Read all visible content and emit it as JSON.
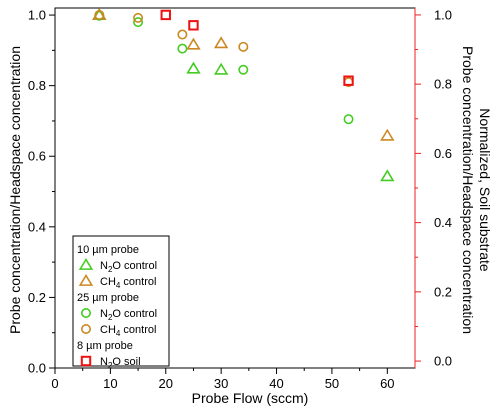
{
  "chart_data": {
    "type": "scatter",
    "title": "",
    "xlabel": "Probe Flow (sccm)",
    "ylabel_left": "Probe concentration/Headspace concentration",
    "ylabel_right_line1": "Probe concentration/Headspace concentration",
    "ylabel_right_line2": "Normalized,  Soil substrate",
    "xlim": [
      0,
      65
    ],
    "ylim_left": [
      0,
      1.02
    ],
    "ylim_right": [
      -0.02,
      1.02
    ],
    "x_ticks": [
      0,
      10,
      20,
      30,
      40,
      50,
      60
    ],
    "y_ticks_left": [
      0.0,
      0.2,
      0.4,
      0.6,
      0.8,
      1.0
    ],
    "y_ticks_right": [
      0.0,
      0.2,
      0.4,
      0.6,
      0.8,
      1.0
    ],
    "grid": false,
    "legend_position": "bottom-left",
    "legend": [
      {
        "type": "header",
        "text": "10 µm probe"
      },
      {
        "type": "entry",
        "series": 0,
        "text_main": "N",
        "text_sub": "2",
        "text_rest": "O control"
      },
      {
        "type": "entry",
        "series": 1,
        "text_main": "CH",
        "text_sub": "4",
        "text_rest": " control"
      },
      {
        "type": "header",
        "text": "25 µm probe"
      },
      {
        "type": "entry",
        "series": 2,
        "text_main": "N",
        "text_sub": "2",
        "text_rest": "O control"
      },
      {
        "type": "entry",
        "series": 3,
        "text_main": "CH",
        "text_sub": "4",
        "text_rest": " control"
      },
      {
        "type": "header",
        "text": "8 µm probe"
      },
      {
        "type": "entry",
        "series": 4,
        "text_main": "N",
        "text_sub": "2",
        "text_rest": "O soil"
      }
    ],
    "series": [
      {
        "marker": "triangle",
        "color": "#44cc22",
        "axis": "left",
        "points": [
          [
            8,
            1.0
          ],
          [
            25,
            0.848
          ],
          [
            30,
            0.845
          ],
          [
            60,
            0.543
          ]
        ]
      },
      {
        "marker": "triangle",
        "color": "#cc8822",
        "axis": "left",
        "points": [
          [
            8,
            1.0
          ],
          [
            25,
            0.916
          ],
          [
            30,
            0.92
          ],
          [
            60,
            0.658
          ]
        ]
      },
      {
        "marker": "circle",
        "color": "#44cc22",
        "axis": "left",
        "points": [
          [
            8,
            0.998
          ],
          [
            15,
            0.98
          ],
          [
            23,
            0.905
          ],
          [
            34,
            0.845
          ],
          [
            53,
            0.705
          ]
        ]
      },
      {
        "marker": "circle",
        "color": "#cc8822",
        "axis": "left",
        "points": [
          [
            8,
            1.0
          ],
          [
            15,
            0.992
          ],
          [
            23,
            0.945
          ],
          [
            34,
            0.91
          ],
          [
            53,
            0.81
          ]
        ]
      },
      {
        "marker": "square",
        "color": "#ee1111",
        "axis": "right",
        "points": [
          [
            20,
            1.0
          ],
          [
            25,
            0.97
          ],
          [
            53,
            0.81
          ]
        ]
      }
    ],
    "colors": {
      "left_axis": "#000000",
      "right_axis": "#ee2222"
    }
  }
}
